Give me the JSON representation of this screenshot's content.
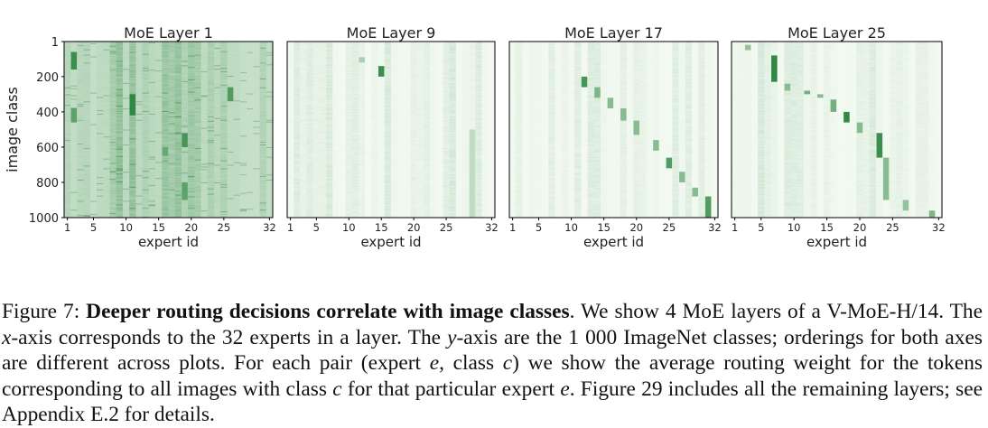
{
  "chart_data": [
    {
      "type": "heatmap",
      "title": "MoE Layer 1",
      "xlabel": "expert id",
      "ylabel": "image class",
      "xticks": [
        "1",
        "5",
        "10",
        "15",
        "20",
        "25",
        "32"
      ],
      "yticks": [
        "1",
        "200",
        "400",
        "600",
        "800",
        "1000"
      ],
      "xlim": [
        1,
        32
      ],
      "ylim": [
        1,
        1000
      ],
      "pattern": "dense",
      "colormap": {
        "low": "#f7fcf5",
        "high": "#1b7a30"
      },
      "hot_cells": [
        {
          "expert": 2,
          "class_from": 60,
          "class_to": 160,
          "intensity": 0.85
        },
        {
          "expert": 2,
          "class_from": 380,
          "class_to": 460,
          "intensity": 0.7
        },
        {
          "expert": 11,
          "class_from": 300,
          "class_to": 420,
          "intensity": 0.9
        },
        {
          "expert": 16,
          "class_from": 600,
          "class_to": 650,
          "intensity": 0.65
        },
        {
          "expert": 19,
          "class_from": 520,
          "class_to": 600,
          "intensity": 0.8
        },
        {
          "expert": 19,
          "class_from": 800,
          "class_to": 900,
          "intensity": 0.7
        },
        {
          "expert": 26,
          "class_from": 260,
          "class_to": 340,
          "intensity": 0.75
        }
      ]
    },
    {
      "type": "heatmap",
      "title": "MoE Layer 9",
      "xlabel": "expert id",
      "xticks": [
        "1",
        "5",
        "10",
        "15",
        "20",
        "25",
        "32"
      ],
      "xlim": [
        1,
        32
      ],
      "ylim": [
        1,
        1000
      ],
      "pattern": "sparse",
      "colormap": {
        "low": "#f7fcf5",
        "high": "#1b7a30"
      },
      "hot_cells": [
        {
          "expert": 15,
          "class_from": 140,
          "class_to": 200,
          "intensity": 0.85
        },
        {
          "expert": 12,
          "class_from": 90,
          "class_to": 120,
          "intensity": 0.35
        },
        {
          "expert": 29,
          "class_from": 500,
          "class_to": 1000,
          "intensity": 0.25
        }
      ]
    },
    {
      "type": "heatmap",
      "title": "MoE Layer 17",
      "xlabel": "expert id",
      "xticks": [
        "1",
        "5",
        "10",
        "15",
        "20",
        "25",
        "32"
      ],
      "xlim": [
        1,
        32
      ],
      "ylim": [
        1,
        1000
      ],
      "pattern": "diagonal",
      "colormap": {
        "low": "#f7fcf5",
        "high": "#1b7a30"
      },
      "hot_cells": [
        {
          "expert": 12,
          "class_from": 200,
          "class_to": 260,
          "intensity": 0.8
        },
        {
          "expert": 14,
          "class_from": 260,
          "class_to": 320,
          "intensity": 0.55
        },
        {
          "expert": 16,
          "class_from": 320,
          "class_to": 380,
          "intensity": 0.5
        },
        {
          "expert": 18,
          "class_from": 380,
          "class_to": 450,
          "intensity": 0.5
        },
        {
          "expert": 20,
          "class_from": 450,
          "class_to": 530,
          "intensity": 0.5
        },
        {
          "expert": 23,
          "class_from": 560,
          "class_to": 620,
          "intensity": 0.5
        },
        {
          "expert": 25,
          "class_from": 660,
          "class_to": 720,
          "intensity": 0.75
        },
        {
          "expert": 27,
          "class_from": 740,
          "class_to": 800,
          "intensity": 0.5
        },
        {
          "expert": 29,
          "class_from": 830,
          "class_to": 880,
          "intensity": 0.5
        },
        {
          "expert": 31,
          "class_from": 880,
          "class_to": 1000,
          "intensity": 0.75
        }
      ]
    },
    {
      "type": "heatmap",
      "title": "MoE Layer 25",
      "xlabel": "expert id",
      "xticks": [
        "1",
        "5",
        "10",
        "15",
        "20",
        "25",
        "32"
      ],
      "xlim": [
        1,
        32
      ],
      "ylim": [
        1,
        1000
      ],
      "pattern": "diagonal",
      "colormap": {
        "low": "#f7fcf5",
        "high": "#1b7a30"
      },
      "hot_cells": [
        {
          "expert": 3,
          "class_from": 20,
          "class_to": 50,
          "intensity": 0.45
        },
        {
          "expert": 7,
          "class_from": 80,
          "class_to": 230,
          "intensity": 0.9
        },
        {
          "expert": 9,
          "class_from": 240,
          "class_to": 280,
          "intensity": 0.5
        },
        {
          "expert": 12,
          "class_from": 280,
          "class_to": 300,
          "intensity": 0.6
        },
        {
          "expert": 14,
          "class_from": 300,
          "class_to": 320,
          "intensity": 0.5
        },
        {
          "expert": 16,
          "class_from": 330,
          "class_to": 400,
          "intensity": 0.6
        },
        {
          "expert": 18,
          "class_from": 400,
          "class_to": 460,
          "intensity": 0.9
        },
        {
          "expert": 20,
          "class_from": 460,
          "class_to": 520,
          "intensity": 0.5
        },
        {
          "expert": 23,
          "class_from": 520,
          "class_to": 660,
          "intensity": 0.85
        },
        {
          "expert": 24,
          "class_from": 660,
          "class_to": 900,
          "intensity": 0.5
        },
        {
          "expert": 27,
          "class_from": 900,
          "class_to": 960,
          "intensity": 0.45
        },
        {
          "expert": 31,
          "class_from": 960,
          "class_to": 1000,
          "intensity": 0.55
        }
      ]
    }
  ],
  "caption": {
    "label": "Figure 7:",
    "headline": "Deeper routing decisions correlate with image classes",
    "text_1": ". We show 4 MoE layers of a V-MoE-H/14. The ",
    "var_x": "x",
    "text_2": "-axis corresponds to the 32 experts in a layer. The ",
    "var_y": "y",
    "text_3": "-axis are the 1 000 ImageNet classes; orderings for both axes are different across plots. For each pair (expert ",
    "var_e1": "e",
    "text_4": ", class ",
    "var_c1": "c",
    "text_5": ") we show the average routing weight for the tokens corresponding to all images with class ",
    "var_c2": "c",
    "text_6": " for that particular expert ",
    "var_e2": "e",
    "text_7": ". Figure 29 includes all the remaining layers; see Appendix E.2 for details."
  }
}
